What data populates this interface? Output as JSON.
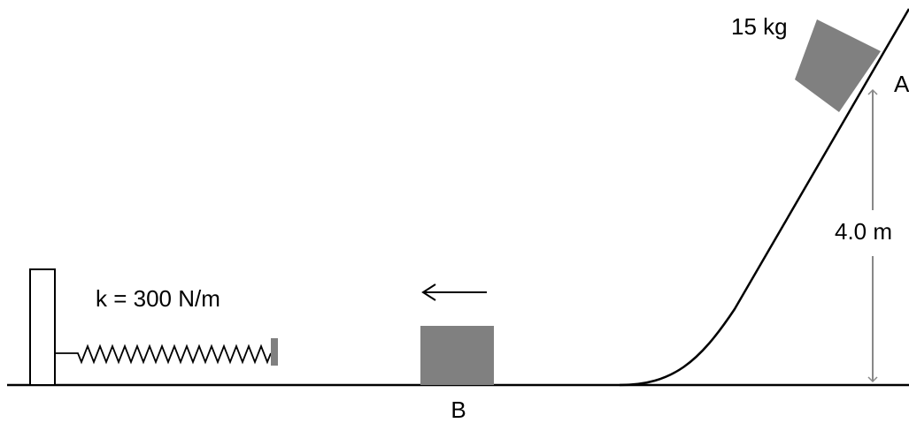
{
  "labels": {
    "mass": "15 kg",
    "point_a": "A",
    "height": "4.0 m",
    "spring": "k = 300 N/m",
    "point_b": "B"
  }
}
